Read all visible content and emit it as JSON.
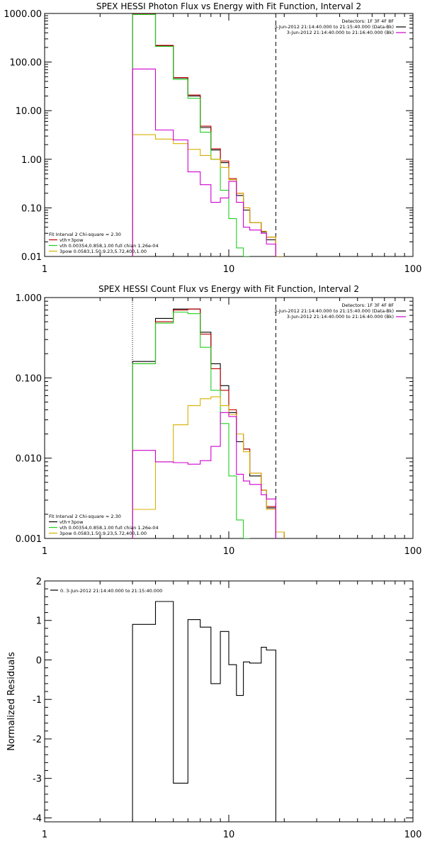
{
  "chart_data": [
    {
      "type": "line",
      "title": "SPEX HESSI Photon Flux vs Energy with Fit Function, Interval 2",
      "xscale": "log",
      "yscale": "log",
      "xlim": [
        1,
        100
      ],
      "ylim": [
        0.01,
        1000
      ],
      "x_ticks": [
        "1",
        "10",
        "100"
      ],
      "y_ticks": [
        "0.01",
        "0.10",
        "1.00",
        "10.00",
        "100.00",
        "1000.00"
      ],
      "top_right_text": [
        "Detectors: 1F 3F 4F 8F",
        "3-Jun-2012 21:14:40.000 to 21:15:40.000 (Data-Bk)",
        "3-Jun-2012 21:14:40.000 to 21:16:40.000 (Bk)"
      ],
      "fit_legend": [
        "Fit Interval 2   Chi-square = 2.30",
        "vth+3pow",
        "vth 0.00354,0.858,1.00  full chian 1.26e-04",
        "3pow 0.0583,1.50,9.23,5.72,400,1.00"
      ],
      "legend_colors": [
        "#c00000",
        "#20d020",
        "#d8b000"
      ],
      "bk_color": "#d000d0",
      "data_color": "#000000",
      "fit_range": [
        3,
        18
      ],
      "bin_edges": [
        3,
        4,
        5,
        6,
        7,
        8,
        9,
        10,
        11,
        12,
        13,
        15,
        16,
        18,
        20
      ],
      "series": [
        {
          "name": "Data-Bk",
          "color": "#000000",
          "values": [
            950,
            215,
            47,
            20,
            4.5,
            1.55,
            0.85,
            0.38,
            0.18,
            0.09,
            0.05,
            0.032,
            0.022,
            null
          ]
        },
        {
          "name": "vth+3pow",
          "color": "#c00000",
          "values": [
            960,
            220,
            48,
            21,
            4.8,
            1.65,
            0.92,
            0.4,
            0.2,
            0.1,
            0.05,
            0.033,
            0.025,
            0.009
          ]
        },
        {
          "name": "vth",
          "color": "#20d020",
          "values": [
            950,
            210,
            44,
            18,
            3.6,
            1.0,
            0.23,
            0.06,
            0.015,
            0.005,
            null,
            null,
            null,
            null
          ]
        },
        {
          "name": "3pow",
          "color": "#d8b000",
          "values": [
            3.2,
            2.6,
            2.1,
            1.6,
            1.2,
            1.0,
            0.68,
            0.38,
            0.2,
            0.1,
            0.05,
            0.033,
            0.025,
            0.009
          ]
        },
        {
          "name": "Bk",
          "color": "#d000d0",
          "values": [
            72,
            4.0,
            2.5,
            0.55,
            0.3,
            0.13,
            0.16,
            0.35,
            0.13,
            0.04,
            0.035,
            0.03,
            0.018,
            null
          ]
        }
      ]
    },
    {
      "type": "line",
      "title": "SPEX HESSI Count Flux vs Energy with Fit Function, Interval 2",
      "xscale": "log",
      "yscale": "log",
      "xlim": [
        1,
        100
      ],
      "ylim": [
        0.001,
        1.0
      ],
      "x_ticks": [
        "1",
        "10",
        "100"
      ],
      "y_ticks": [
        "0.001",
        "0.010",
        "0.100",
        "1.000"
      ],
      "top_right_text": [
        "Detectors: 1F 3F 4F 8F",
        "3-Jun-2012 21:14:40.000 to 21:15:40.000 (Data-Bk)",
        "3-Jun-2012 21:14:40.000 to 21:16:40.000 (Bk)"
      ],
      "fit_legend": [
        "Fit Interval 2   Chi-square = 2.30",
        "vth+3pow",
        "vth 0.00354,0.858,1.00  full chian 1.26e-04",
        "3pow 0.0583,1.50,9.23,5.72,400,1.00"
      ],
      "legend_colors": [
        "#000000",
        "#20d020",
        "#d8b000"
      ],
      "bk_color": "#d000d0",
      "data_color": "#000000",
      "fit_range": [
        3,
        18
      ],
      "bin_edges": [
        3,
        4,
        5,
        6,
        7,
        8,
        9,
        10,
        11,
        12,
        13,
        15,
        16,
        18,
        20
      ],
      "series": [
        {
          "name": "Data-Bk",
          "color": "#000000",
          "values": [
            0.16,
            0.55,
            0.72,
            0.72,
            0.37,
            0.15,
            0.08,
            0.037,
            0.016,
            0.013,
            0.006,
            0.004,
            0.0024,
            null
          ]
        },
        {
          "name": "vth+3pow",
          "color": "#c00000",
          "values": [
            0.15,
            0.5,
            0.7,
            0.72,
            0.35,
            0.13,
            0.07,
            0.04,
            0.02,
            0.013,
            0.0065,
            0.004,
            0.0025,
            0.0012
          ]
        },
        {
          "name": "vth",
          "color": "#20d020",
          "values": [
            0.15,
            0.48,
            0.66,
            0.63,
            0.24,
            0.07,
            0.027,
            0.006,
            0.0017,
            0.00045,
            null,
            null,
            null,
            null
          ]
        },
        {
          "name": "3pow",
          "color": "#d8b000",
          "values": [
            0.0023,
            0.009,
            0.026,
            0.045,
            0.055,
            0.058,
            0.045,
            0.035,
            0.02,
            0.012,
            0.0065,
            0.004,
            0.0023,
            0.0012
          ]
        },
        {
          "name": "Bk",
          "color": "#d000d0",
          "values": [
            0.0125,
            0.009,
            0.0088,
            0.0084,
            0.0093,
            0.014,
            0.037,
            0.033,
            0.0063,
            0.0052,
            0.0047,
            0.0035,
            0.0031,
            null
          ]
        }
      ]
    },
    {
      "type": "line",
      "title": "",
      "xscale": "log",
      "xlim": [
        1,
        100
      ],
      "ylim": [
        -4.1,
        2.0
      ],
      "ylabel": "Normalized Residuals",
      "x_ticks": [
        "1",
        "10",
        "100"
      ],
      "y_ticks": [
        "-4",
        "-3",
        "-2",
        "-1",
        "0",
        "1",
        "2"
      ],
      "legend": [
        "0.  3-Jun-2012 21:14:40.000 to 21:15:40.000"
      ],
      "bin_edges": [
        3,
        4,
        5,
        6,
        7,
        8,
        9,
        10,
        11,
        12,
        13,
        15,
        16,
        18
      ],
      "series": [
        {
          "name": "0.  3-Jun-2012 21:14:40.000 to 21:15:40.000",
          "color": "#000000",
          "values": [
            0.9,
            1.48,
            -3.12,
            1.02,
            0.83,
            -0.6,
            0.72,
            -0.12,
            -0.9,
            -0.05,
            -0.08,
            0.32,
            0.25
          ]
        }
      ]
    }
  ]
}
